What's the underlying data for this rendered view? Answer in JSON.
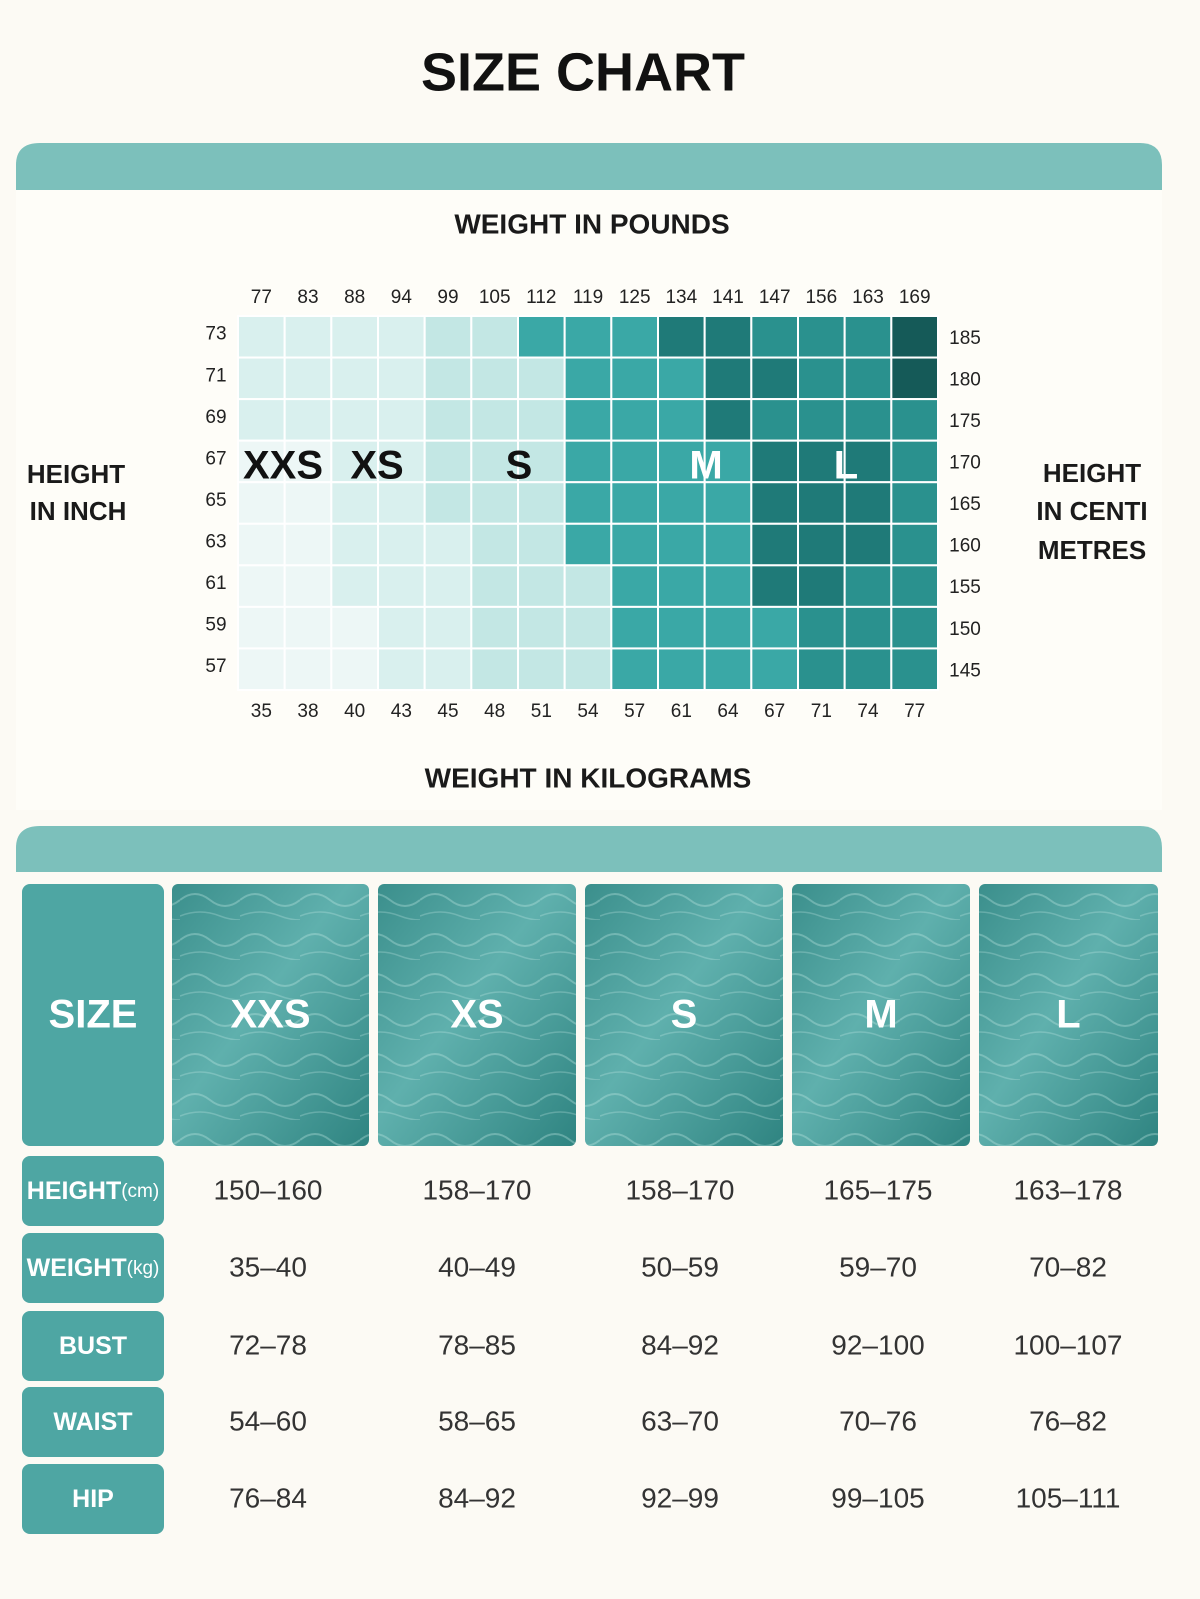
{
  "title": "SIZE CHART",
  "grid": {
    "top_label": "WEIGHT IN POUNDS",
    "bottom_label": "WEIGHT IN KILOGRAMS",
    "left_label": [
      "HEIGHT",
      "IN INCH"
    ],
    "right_label": [
      "HEIGHT",
      "IN CENTI",
      "METRES"
    ],
    "pounds": [
      77,
      83,
      88,
      94,
      99,
      105,
      112,
      119,
      125,
      134,
      141,
      147,
      156,
      163,
      169
    ],
    "kilograms": [
      35,
      38,
      40,
      43,
      45,
      48,
      51,
      54,
      57,
      61,
      64,
      67,
      71,
      74,
      77
    ],
    "inches": [
      73,
      71,
      69,
      67,
      65,
      63,
      61,
      59,
      57
    ],
    "centimetres": [
      185,
      180,
      175,
      170,
      165,
      160,
      155,
      150,
      145
    ],
    "size_labels": [
      "XXS",
      "XS",
      "S",
      "M",
      "L"
    ]
  },
  "table": {
    "header": "SIZE",
    "sizes": [
      "XXS",
      "XS",
      "S",
      "M",
      "L"
    ],
    "rows": [
      {
        "label": "HEIGHT",
        "unit": "(cm)",
        "cells": [
          "150–160",
          "158–170",
          "158–170",
          "165–175",
          "163–178"
        ]
      },
      {
        "label": "WEIGHT",
        "unit": "(kg)",
        "cells": [
          "35–40",
          "40–49",
          "50–59",
          "59–70",
          "70–82"
        ]
      },
      {
        "label": "BUST",
        "cells": [
          "72–78",
          "78–85",
          "84–92",
          "92–100",
          "100–107"
        ]
      },
      {
        "label": "WAIST",
        "cells": [
          "54–60",
          "58–65",
          "63–70",
          "70–76",
          "76–82"
        ]
      },
      {
        "label": "HIP",
        "cells": [
          "76–84",
          "84–92",
          "92–99",
          "99–105",
          "105–111"
        ]
      }
    ]
  }
}
